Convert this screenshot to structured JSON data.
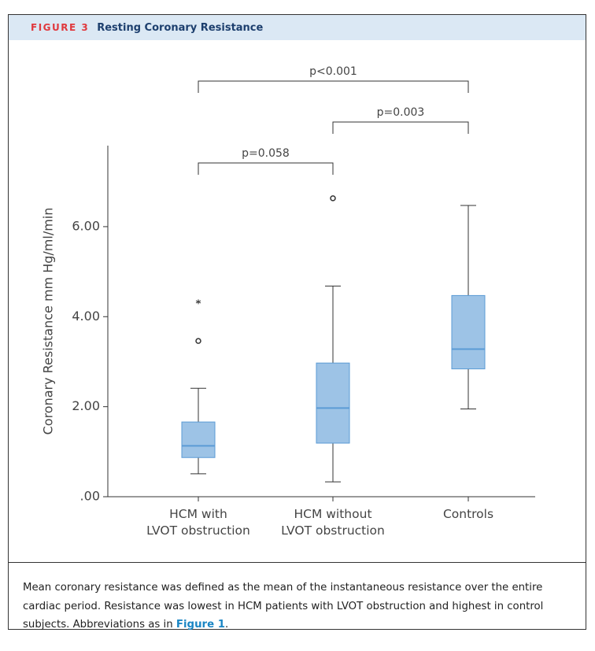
{
  "header": {
    "figure_label": "FIGURE 3",
    "title": "Resting Coronary Resistance"
  },
  "chart_data": {
    "type": "box",
    "y_label": "Coronary Resistance mm Hg/ml/min",
    "categories": [
      "HCM with\nLVOT obstruction",
      "HCM without\nLVOT obstruction",
      "Controls"
    ],
    "boxes": [
      {
        "min": 0.51,
        "q1": 0.87,
        "median": 1.13,
        "q3": 1.66,
        "max": 2.41,
        "outliers": [
          3.46
        ],
        "extremes": [
          4.33
        ]
      },
      {
        "min": 0.33,
        "q1": 1.19,
        "median": 1.97,
        "q3": 2.97,
        "max": 4.68,
        "outliers": [
          6.63
        ]
      },
      {
        "min": 1.95,
        "q1": 2.84,
        "median": 3.28,
        "q3": 4.47,
        "max": 6.47
      }
    ],
    "color": "#9dc3e6",
    "edge_color": "#5b9bd5",
    "ylim": [
      0,
      7.8
    ],
    "yticks": [
      {
        "value": 0,
        "label": ".00"
      },
      {
        "value": 2,
        "label": "2.00"
      },
      {
        "value": 4,
        "label": "4.00"
      },
      {
        "value": 6,
        "label": "6.00"
      }
    ],
    "comparisons": [
      {
        "from": 0,
        "to": 1,
        "label": "p=0.058"
      },
      {
        "from": 1,
        "to": 2,
        "label": "p=0.003"
      },
      {
        "from": 0,
        "to": 2,
        "label": "p<0.001"
      }
    ]
  },
  "caption": {
    "text": "Mean coronary resistance was defined as the mean of the instantaneous resistance over the entire cardiac period. Resistance was lowest in HCM patients with LVOT obstruction and highest in control subjects. Abbreviations as in ",
    "link": "Figure 1",
    "end": "."
  }
}
